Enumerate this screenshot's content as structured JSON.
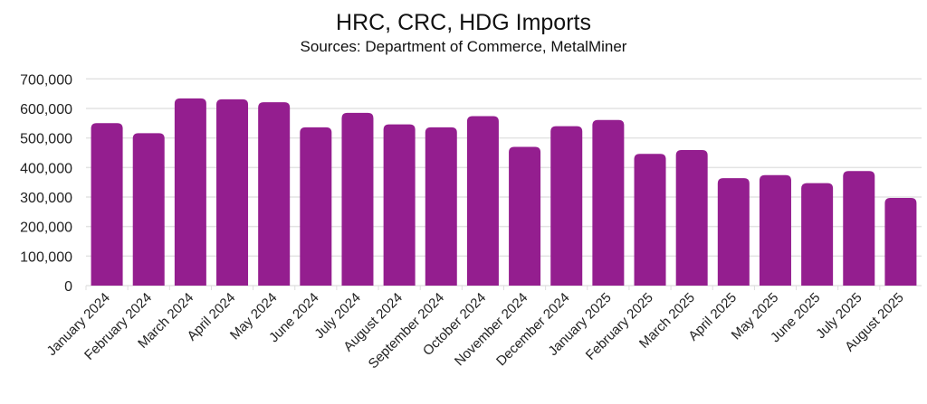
{
  "chart_data": {
    "type": "bar",
    "title": "HRC, CRC, HDG Imports",
    "subtitle": "Sources: Department of Commerce, MetalMiner",
    "xlabel": "",
    "ylabel": "",
    "ylim": [
      0,
      700000
    ],
    "yticks": [
      0,
      100000,
      200000,
      300000,
      400000,
      500000,
      600000,
      700000
    ],
    "ytick_labels": [
      "0",
      "100,000",
      "200,000",
      "300,000",
      "400,000",
      "500,000",
      "600,000",
      "700,000"
    ],
    "grid": true,
    "bar_color": "#941e8f",
    "categories": [
      "January 2024",
      "February 2024",
      "March 2024",
      "April 2024",
      "May 2024",
      "June 2024",
      "July 2024",
      "August 2024",
      "September 2024",
      "October 2024",
      "November 2024",
      "December 2024",
      "January 2025",
      "February 2025",
      "March 2025",
      "April 2025",
      "May 2025",
      "June 2025",
      "July 2025",
      "August 2025"
    ],
    "values": [
      550000,
      516000,
      634000,
      631000,
      621000,
      536000,
      585000,
      546000,
      536000,
      574000,
      470000,
      540000,
      561000,
      446000,
      459000,
      364000,
      374000,
      347000,
      388000,
      297000
    ]
  }
}
